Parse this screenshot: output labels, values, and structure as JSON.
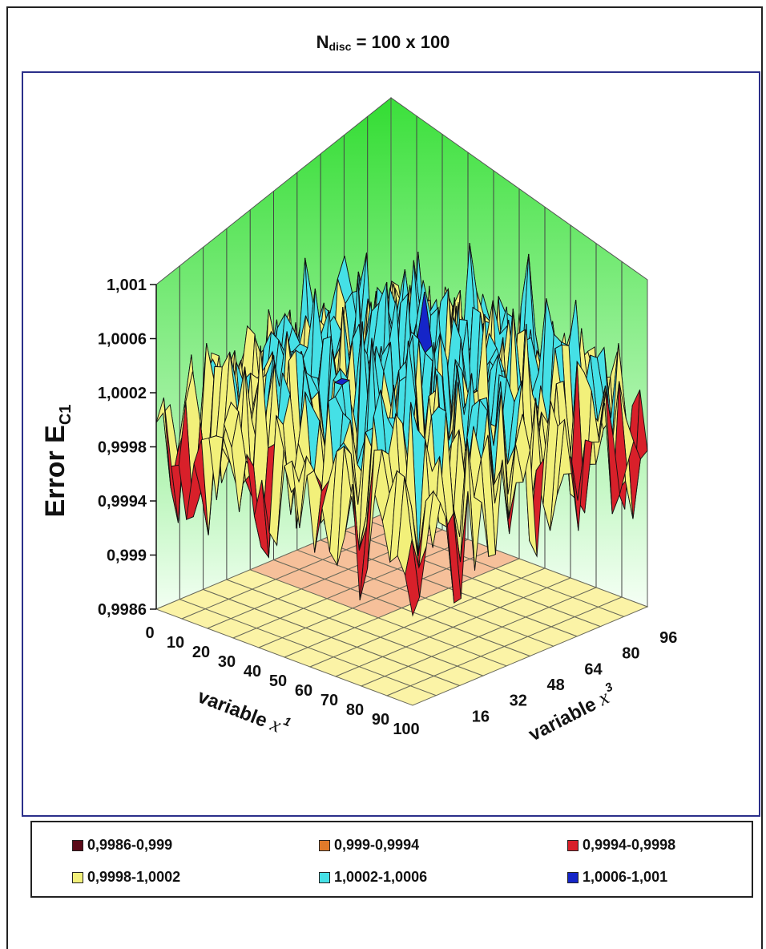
{
  "chart_data": {
    "type": "surface3d",
    "title_main": "N",
    "title_sub": "disc",
    "title_rest": " = 100 x 100",
    "zlabel_main": "Error E",
    "zlabel_sub": "C1",
    "xlabel_text": "variable ",
    "xlabel_var": "x",
    "xlabel_sup": "1",
    "ylabel_text": "variable ",
    "ylabel_var": "x",
    "ylabel_sup": "3",
    "z_ticks": [
      "1,001",
      "1,0006",
      "1,0002",
      "0,9998",
      "0,9994",
      "0,999",
      "0,9986"
    ],
    "z_tick_values": [
      1.001,
      1.0006,
      1.0002,
      0.9998,
      0.9994,
      0.999,
      0.9986
    ],
    "zlim": [
      0.9986,
      1.001
    ],
    "x_ticks": [
      "0",
      "10",
      "20",
      "30",
      "40",
      "50",
      "60",
      "70",
      "80",
      "90",
      "100"
    ],
    "y_ticks": [
      "16",
      "32",
      "48",
      "64",
      "80",
      "96"
    ],
    "xlim": [
      0,
      100
    ],
    "ylim": [
      0,
      100
    ],
    "surface_level_center": 1.0001,
    "surface_level_edge": 1.0,
    "noise_range": [
      0.9986,
      1.001
    ],
    "legend": [
      {
        "label": "0,9986-0,999",
        "color": "#5a0a18"
      },
      {
        "label": "0,999-0,9994",
        "color": "#e07a2a"
      },
      {
        "label": "0,9994-0,9998",
        "color": "#d8202a"
      },
      {
        "label": "0,9998-1,0002",
        "color": "#f2f07a"
      },
      {
        "label": "1,0002-1,0006",
        "color": "#45e0e6"
      },
      {
        "label": "1,0006-1,001",
        "color": "#1525c8"
      }
    ],
    "wall_color": "#3be03b",
    "floor_color_left": "#f6c09a",
    "floor_color_right": "#fbf3a6",
    "legend_position": "bottom"
  }
}
